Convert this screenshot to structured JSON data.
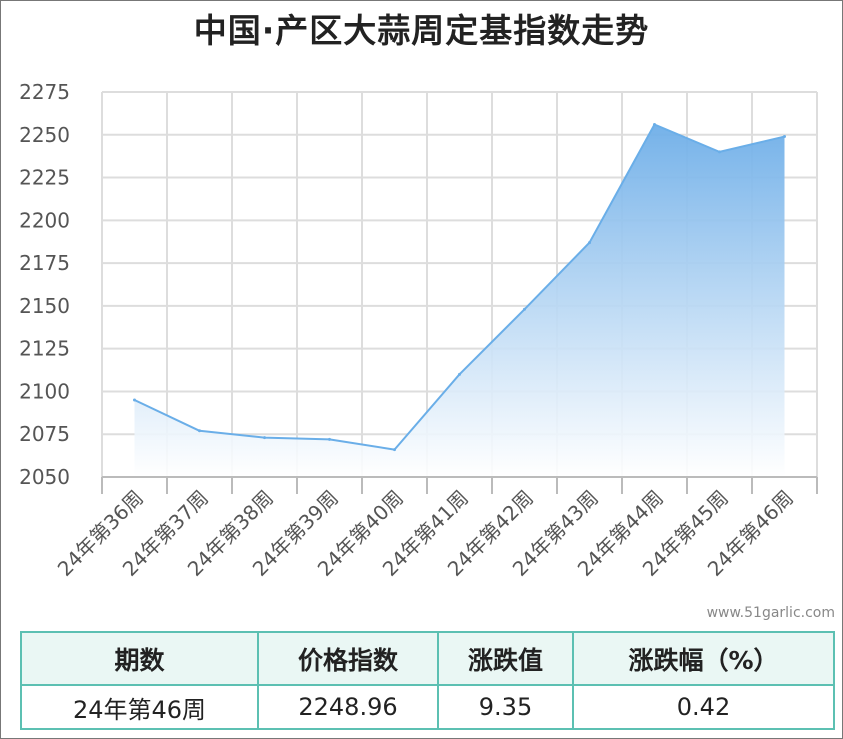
{
  "title": "中国·产区大蒜周定基指数走势",
  "watermark": "www.51garlic.com",
  "colors": {
    "line": "#6aaee8",
    "area_top": "#6eaee8",
    "area_bottom": "#ffffff",
    "grid": "#dddddd",
    "table_border": "#5cc0b2",
    "table_header_bg": "#eaf7f4"
  },
  "chart_data": {
    "type": "area",
    "title": "中国·产区大蒜周定基指数走势",
    "xlabel": "",
    "ylabel": "",
    "categories": [
      "24年第36周",
      "24年第37周",
      "24年第38周",
      "24年第39周",
      "24年第40周",
      "24年第41周",
      "24年第42周",
      "24年第43周",
      "24年第44周",
      "24年第45周",
      "24年第46周"
    ],
    "series": [
      {
        "values": [
          2095,
          2077,
          2073,
          2072,
          2066,
          2110,
          2148,
          2187,
          2256,
          2240,
          2248.96
        ]
      }
    ],
    "ylim": [
      2050,
      2275
    ],
    "yticks": [
      2050,
      2075,
      2100,
      2125,
      2150,
      2175,
      2200,
      2225,
      2250,
      2275
    ],
    "grid": true,
    "legend": "none"
  },
  "table": {
    "headers": [
      "期数",
      "价格指数",
      "涨跌值",
      "涨跌幅（%）"
    ],
    "row": [
      "24年第46周",
      "2248.96",
      "9.35",
      "0.42"
    ]
  }
}
